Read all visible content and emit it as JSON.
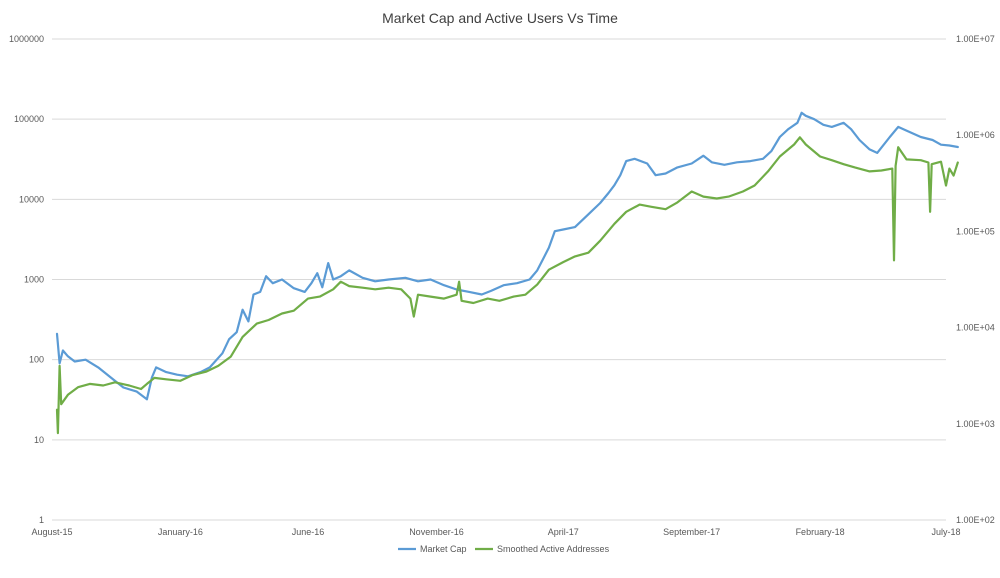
{
  "chart_data": {
    "type": "line",
    "title": "Market Cap and Active Users Vs Time",
    "x_tick_labels": [
      "August-15",
      "January-16",
      "June-16",
      "November-16",
      "April-17",
      "September-17",
      "February-18",
      "July-18"
    ],
    "x_tick_dates": [
      "2015-08-01",
      "2016-01-01",
      "2016-06-01",
      "2016-11-01",
      "2017-04-01",
      "2017-09-01",
      "2018-02-01",
      "2018-07-01"
    ],
    "x_range": [
      "2015-08-01",
      "2018-07-01"
    ],
    "y_left": {
      "scale": "log",
      "range": [
        1,
        1000000
      ],
      "ticks": [
        1,
        10,
        100,
        1000,
        10000,
        100000,
        1000000
      ],
      "tick_labels": [
        "1",
        "10",
        "100",
        "1000",
        "10000",
        "100000",
        "1000000"
      ]
    },
    "y_right": {
      "scale": "log",
      "range": [
        100,
        10000000
      ],
      "ticks": [
        100,
        1000,
        10000,
        100000,
        1000000,
        10000000
      ],
      "tick_labels": [
        "1.00E+02",
        "1.00E+03",
        "1.00E+04",
        "1.00E+05",
        "1.00E+06",
        "1.00E+07"
      ]
    },
    "grid": true,
    "legend_position": "bottom",
    "series": [
      {
        "name": "Market Cap",
        "axis": "left",
        "color": "#5b9bd5",
        "points": [
          [
            "2015-08-07",
            210
          ],
          [
            "2015-08-10",
            90
          ],
          [
            "2015-08-14",
            130
          ],
          [
            "2015-08-20",
            110
          ],
          [
            "2015-08-28",
            95
          ],
          [
            "2015-09-10",
            100
          ],
          [
            "2015-09-25",
            80
          ],
          [
            "2015-10-10",
            60
          ],
          [
            "2015-10-25",
            45
          ],
          [
            "2015-11-10",
            40
          ],
          [
            "2015-11-22",
            32
          ],
          [
            "2015-11-28",
            60
          ],
          [
            "2015-12-03",
            80
          ],
          [
            "2015-12-15",
            70
          ],
          [
            "2015-12-28",
            65
          ],
          [
            "2016-01-10",
            62
          ],
          [
            "2016-01-25",
            70
          ],
          [
            "2016-02-05",
            80
          ],
          [
            "2016-02-20",
            120
          ],
          [
            "2016-02-28",
            180
          ],
          [
            "2016-03-08",
            220
          ],
          [
            "2016-03-15",
            420
          ],
          [
            "2016-03-22",
            300
          ],
          [
            "2016-03-28",
            650
          ],
          [
            "2016-04-05",
            700
          ],
          [
            "2016-04-12",
            1100
          ],
          [
            "2016-04-20",
            900
          ],
          [
            "2016-05-01",
            1000
          ],
          [
            "2016-05-15",
            780
          ],
          [
            "2016-05-28",
            700
          ],
          [
            "2016-06-05",
            900
          ],
          [
            "2016-06-12",
            1200
          ],
          [
            "2016-06-18",
            800
          ],
          [
            "2016-06-25",
            1600
          ],
          [
            "2016-07-01",
            1000
          ],
          [
            "2016-07-10",
            1100
          ],
          [
            "2016-07-20",
            1300
          ],
          [
            "2016-08-05",
            1050
          ],
          [
            "2016-08-20",
            950
          ],
          [
            "2016-09-05",
            1000
          ],
          [
            "2016-09-25",
            1050
          ],
          [
            "2016-10-10",
            950
          ],
          [
            "2016-10-25",
            1000
          ],
          [
            "2016-11-10",
            850
          ],
          [
            "2016-11-25",
            750
          ],
          [
            "2016-12-10",
            700
          ],
          [
            "2016-12-25",
            650
          ],
          [
            "2017-01-05",
            720
          ],
          [
            "2017-01-20",
            850
          ],
          [
            "2017-02-05",
            900
          ],
          [
            "2017-02-20",
            1000
          ],
          [
            "2017-03-01",
            1300
          ],
          [
            "2017-03-08",
            1800
          ],
          [
            "2017-03-15",
            2500
          ],
          [
            "2017-03-22",
            4000
          ],
          [
            "2017-04-01",
            4200
          ],
          [
            "2017-04-15",
            4500
          ],
          [
            "2017-05-01",
            6500
          ],
          [
            "2017-05-15",
            9000
          ],
          [
            "2017-05-25",
            12000
          ],
          [
            "2017-06-01",
            15000
          ],
          [
            "2017-06-08",
            20000
          ],
          [
            "2017-06-15",
            30000
          ],
          [
            "2017-06-25",
            32000
          ],
          [
            "2017-07-10",
            28000
          ],
          [
            "2017-07-20",
            20000
          ],
          [
            "2017-08-01",
            21000
          ],
          [
            "2017-08-15",
            25000
          ],
          [
            "2017-09-01",
            28000
          ],
          [
            "2017-09-15",
            35000
          ],
          [
            "2017-09-25",
            29000
          ],
          [
            "2017-10-10",
            27000
          ],
          [
            "2017-10-25",
            29000
          ],
          [
            "2017-11-10",
            30000
          ],
          [
            "2017-11-25",
            32000
          ],
          [
            "2017-12-05",
            40000
          ],
          [
            "2017-12-15",
            60000
          ],
          [
            "2017-12-25",
            75000
          ],
          [
            "2018-01-05",
            90000
          ],
          [
            "2018-01-10",
            120000
          ],
          [
            "2018-01-15",
            110000
          ],
          [
            "2018-01-25",
            100000
          ],
          [
            "2018-02-05",
            85000
          ],
          [
            "2018-02-15",
            80000
          ],
          [
            "2018-03-01",
            90000
          ],
          [
            "2018-03-10",
            75000
          ],
          [
            "2018-03-20",
            55000
          ],
          [
            "2018-04-01",
            42000
          ],
          [
            "2018-04-10",
            38000
          ],
          [
            "2018-04-25",
            60000
          ],
          [
            "2018-05-05",
            80000
          ],
          [
            "2018-05-15",
            72000
          ],
          [
            "2018-06-01",
            60000
          ],
          [
            "2018-06-15",
            55000
          ],
          [
            "2018-06-25",
            48000
          ],
          [
            "2018-07-05",
            47000
          ],
          [
            "2018-07-15",
            45000
          ]
        ]
      },
      {
        "name": "Smoothed Active Addresses",
        "axis": "right",
        "color": "#70ad47",
        "points": [
          [
            "2015-08-07",
            1400
          ],
          [
            "2015-08-08",
            800
          ],
          [
            "2015-08-10",
            4000
          ],
          [
            "2015-08-12",
            1600
          ],
          [
            "2015-08-20",
            2000
          ],
          [
            "2015-09-01",
            2400
          ],
          [
            "2015-09-15",
            2600
          ],
          [
            "2015-10-01",
            2500
          ],
          [
            "2015-10-15",
            2700
          ],
          [
            "2015-11-01",
            2500
          ],
          [
            "2015-11-15",
            2300
          ],
          [
            "2015-11-22",
            2600
          ],
          [
            "2015-12-01",
            3000
          ],
          [
            "2015-12-15",
            2900
          ],
          [
            "2016-01-01",
            2800
          ],
          [
            "2016-01-15",
            3200
          ],
          [
            "2016-02-01",
            3500
          ],
          [
            "2016-02-15",
            4000
          ],
          [
            "2016-03-01",
            5000
          ],
          [
            "2016-03-15",
            8000
          ],
          [
            "2016-04-01",
            11000
          ],
          [
            "2016-04-15",
            12000
          ],
          [
            "2016-05-01",
            14000
          ],
          [
            "2016-05-15",
            15000
          ],
          [
            "2016-06-01",
            20000
          ],
          [
            "2016-06-15",
            21000
          ],
          [
            "2016-07-01",
            25000
          ],
          [
            "2016-07-10",
            30000
          ],
          [
            "2016-07-20",
            27000
          ],
          [
            "2016-08-05",
            26000
          ],
          [
            "2016-08-20",
            25000
          ],
          [
            "2016-09-05",
            26000
          ],
          [
            "2016-09-20",
            25000
          ],
          [
            "2016-10-01",
            20000
          ],
          [
            "2016-10-05",
            13000
          ],
          [
            "2016-10-10",
            22000
          ],
          [
            "2016-10-25",
            21000
          ],
          [
            "2016-11-10",
            20000
          ],
          [
            "2016-11-25",
            22000
          ],
          [
            "2016-11-28",
            30000
          ],
          [
            "2016-12-01",
            19000
          ],
          [
            "2016-12-15",
            18000
          ],
          [
            "2017-01-01",
            20000
          ],
          [
            "2017-01-15",
            19000
          ],
          [
            "2017-02-01",
            21000
          ],
          [
            "2017-02-15",
            22000
          ],
          [
            "2017-03-01",
            28000
          ],
          [
            "2017-03-15",
            40000
          ],
          [
            "2017-04-01",
            48000
          ],
          [
            "2017-04-15",
            55000
          ],
          [
            "2017-05-01",
            60000
          ],
          [
            "2017-05-15",
            80000
          ],
          [
            "2017-06-01",
            120000
          ],
          [
            "2017-06-15",
            160000
          ],
          [
            "2017-07-01",
            190000
          ],
          [
            "2017-07-15",
            180000
          ],
          [
            "2017-08-01",
            170000
          ],
          [
            "2017-08-15",
            200000
          ],
          [
            "2017-09-01",
            260000
          ],
          [
            "2017-09-15",
            230000
          ],
          [
            "2017-10-01",
            220000
          ],
          [
            "2017-10-15",
            230000
          ],
          [
            "2017-11-01",
            260000
          ],
          [
            "2017-11-15",
            300000
          ],
          [
            "2017-12-01",
            420000
          ],
          [
            "2017-12-15",
            600000
          ],
          [
            "2018-01-01",
            800000
          ],
          [
            "2018-01-08",
            950000
          ],
          [
            "2018-01-15",
            800000
          ],
          [
            "2018-02-01",
            600000
          ],
          [
            "2018-02-15",
            550000
          ],
          [
            "2018-03-01",
            500000
          ],
          [
            "2018-03-15",
            460000
          ],
          [
            "2018-04-01",
            420000
          ],
          [
            "2018-04-15",
            430000
          ],
          [
            "2018-04-28",
            450000
          ],
          [
            "2018-04-30",
            50000
          ],
          [
            "2018-05-02",
            480000
          ],
          [
            "2018-05-05",
            750000
          ],
          [
            "2018-05-15",
            560000
          ],
          [
            "2018-06-01",
            550000
          ],
          [
            "2018-06-10",
            520000
          ],
          [
            "2018-06-12",
            160000
          ],
          [
            "2018-06-14",
            500000
          ],
          [
            "2018-06-25",
            530000
          ],
          [
            "2018-07-01",
            300000
          ],
          [
            "2018-07-05",
            450000
          ],
          [
            "2018-07-10",
            380000
          ],
          [
            "2018-07-15",
            520000
          ]
        ]
      }
    ]
  }
}
